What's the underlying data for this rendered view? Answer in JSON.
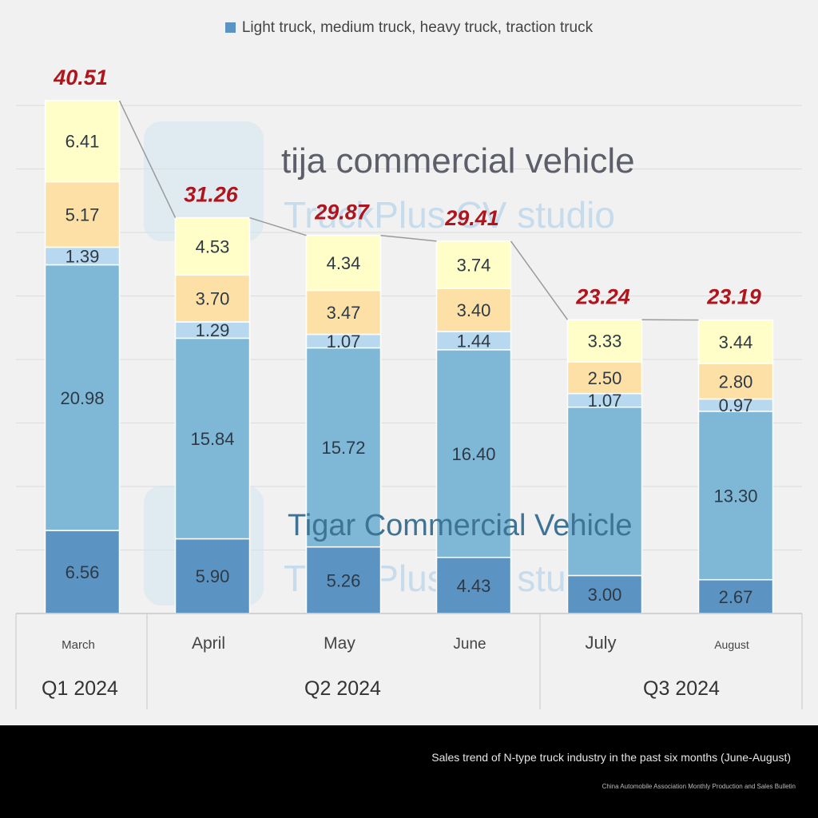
{
  "chart_data": {
    "type": "bar",
    "stacked": true,
    "categories": [
      "March",
      "April",
      "May",
      "June",
      "July",
      "August"
    ],
    "quarters": [
      {
        "label": "Q1 2024",
        "months": [
          "March"
        ]
      },
      {
        "label": "Q2 2024",
        "months": [
          "April",
          "May",
          "June"
        ]
      },
      {
        "label": "Q3 2024",
        "months": [
          "July",
          "August"
        ]
      }
    ],
    "series": [
      {
        "values": [
          6.56,
          5.9,
          5.26,
          4.43,
          3.0,
          2.67
        ],
        "color": "#5b93c2"
      },
      {
        "values": [
          20.98,
          15.84,
          15.72,
          16.4,
          13.3,
          13.3
        ],
        "color": "#7fb7d7"
      },
      {
        "values": [
          1.39,
          1.29,
          1.07,
          1.44,
          1.07,
          0.97
        ],
        "color": "#b7d8ee"
      },
      {
        "values": [
          5.17,
          3.7,
          3.47,
          3.4,
          2.5,
          2.8
        ],
        "color": "#fde0a6"
      },
      {
        "values": [
          6.41,
          4.53,
          4.34,
          3.74,
          3.33,
          3.44
        ],
        "color": "#fffdc8"
      }
    ],
    "segment_labels": [
      [
        "6.56",
        "20.98",
        "1.39",
        "5.17",
        "6.41"
      ],
      [
        "5.90",
        "15.84",
        "1.29",
        "3.70",
        "4.53"
      ],
      [
        "5.26",
        "15.72",
        "1.07",
        "3.47",
        "4.34"
      ],
      [
        "4.43",
        "16.40",
        "1.44",
        "3.40",
        "3.74"
      ],
      [
        "3.00",
        "",
        "1.07",
        "2.50",
        "3.33"
      ],
      [
        "2.67",
        "13.30",
        "0.97",
        "2.80",
        "3.44"
      ]
    ],
    "totals": [
      "40.51",
      "31.26",
      "29.87",
      "29.41",
      "23.24",
      "23.19"
    ],
    "legend": {
      "label": "Light truck, medium truck, heavy truck, traction truck",
      "position": "top"
    },
    "ylim": [
      0,
      41
    ],
    "grid": true,
    "total_label_color": "#b0141c"
  },
  "watermarks": {
    "upper": "tija commercial vehicle",
    "lower": "Tigar Commercial Vehicle",
    "studio": "TruckPlus CV studio"
  },
  "footer": {
    "caption": "Sales trend of N-type truck industry in the past six months (June-August)",
    "source": "China Automobile Association Monthly Production and Sales Bulletin"
  }
}
